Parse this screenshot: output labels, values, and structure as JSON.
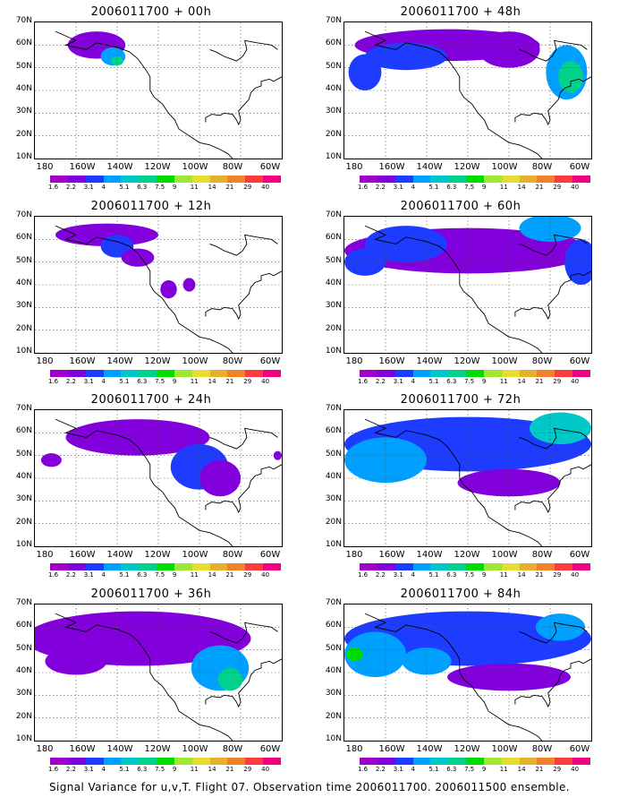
{
  "footer": "Signal Variance for u,v,T. Flight 07. Observation time 2006011700. 2006011500 ensemble.",
  "lat_labels": [
    "70N",
    "60N",
    "50N",
    "40N",
    "30N",
    "20N",
    "10N"
  ],
  "lon_labels": [
    "180",
    "160W",
    "140W",
    "120W",
    "100W",
    "80W",
    "60W"
  ],
  "colorbar": {
    "labels": [
      "1.6",
      "2.2",
      "3.1",
      "4",
      "5.1",
      "6.3",
      "7.5",
      "9",
      "11",
      "14",
      "21",
      "29",
      "40"
    ],
    "colors": [
      "#a000c8",
      "#8200dc",
      "#1e3cff",
      "#00a0ff",
      "#00c8c8",
      "#00d28c",
      "#00dc00",
      "#a0e632",
      "#e6dc32",
      "#e6af2d",
      "#f08228",
      "#fa3c3c",
      "#f00082"
    ]
  },
  "panels": [
    {
      "title": "2006011700 + 00h",
      "col": 0,
      "row": 0
    },
    {
      "title": "2006011700 + 48h",
      "col": 1,
      "row": 0
    },
    {
      "title": "2006011700 + 12h",
      "col": 0,
      "row": 1
    },
    {
      "title": "2006011700 + 60h",
      "col": 1,
      "row": 1
    },
    {
      "title": "2006011700 + 24h",
      "col": 0,
      "row": 2
    },
    {
      "title": "2006011700 + 72h",
      "col": 1,
      "row": 2
    },
    {
      "title": "2006011700 + 36h",
      "col": 0,
      "row": 3
    },
    {
      "title": "2006011700 + 84h",
      "col": 1,
      "row": 3
    }
  ]
}
